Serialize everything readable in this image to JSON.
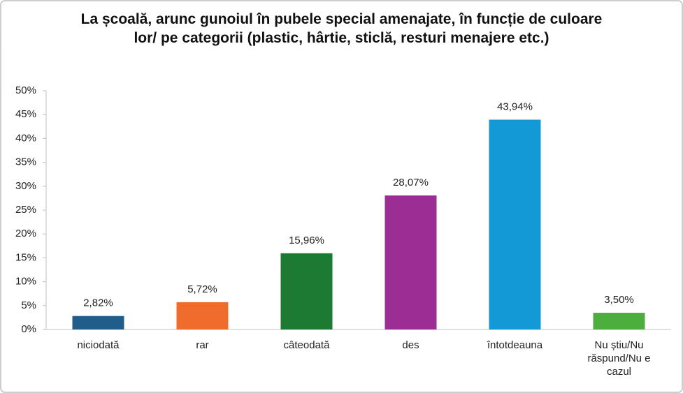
{
  "chart_data": {
    "type": "bar",
    "title": "La școală, arunc gunoiul în pubele special amenajate, în funcție de culoare lor/ pe categorii (plastic, hârtie, sticlă, resturi menajere etc.)",
    "categories": [
      "niciodată",
      "rar",
      "câteodată",
      "des",
      "întotdeauna",
      "Nu știu/Nu răspund/Nu e cazul"
    ],
    "values": [
      2.82,
      5.72,
      15.96,
      28.07,
      43.94,
      3.5
    ],
    "value_labels": [
      "2,82%",
      "5,72%",
      "15,96%",
      "28,07%",
      "43,94%",
      "3,50%"
    ],
    "colors": [
      "#215d8a",
      "#ef6c2d",
      "#1d7a33",
      "#9b2d94",
      "#139ad6",
      "#4cae3c"
    ],
    "ylim": [
      0,
      50
    ],
    "yticks": [
      {
        "value": 0,
        "label": "0%"
      },
      {
        "value": 5,
        "label": "5%"
      },
      {
        "value": 10,
        "label": "10%"
      },
      {
        "value": 15,
        "label": "15%"
      },
      {
        "value": 20,
        "label": "20%"
      },
      {
        "value": 25,
        "label": "25%"
      },
      {
        "value": 30,
        "label": "30%"
      },
      {
        "value": 35,
        "label": "35%"
      },
      {
        "value": 40,
        "label": "40%"
      },
      {
        "value": 45,
        "label": "45%"
      },
      {
        "value": 50,
        "label": "50%"
      }
    ]
  }
}
